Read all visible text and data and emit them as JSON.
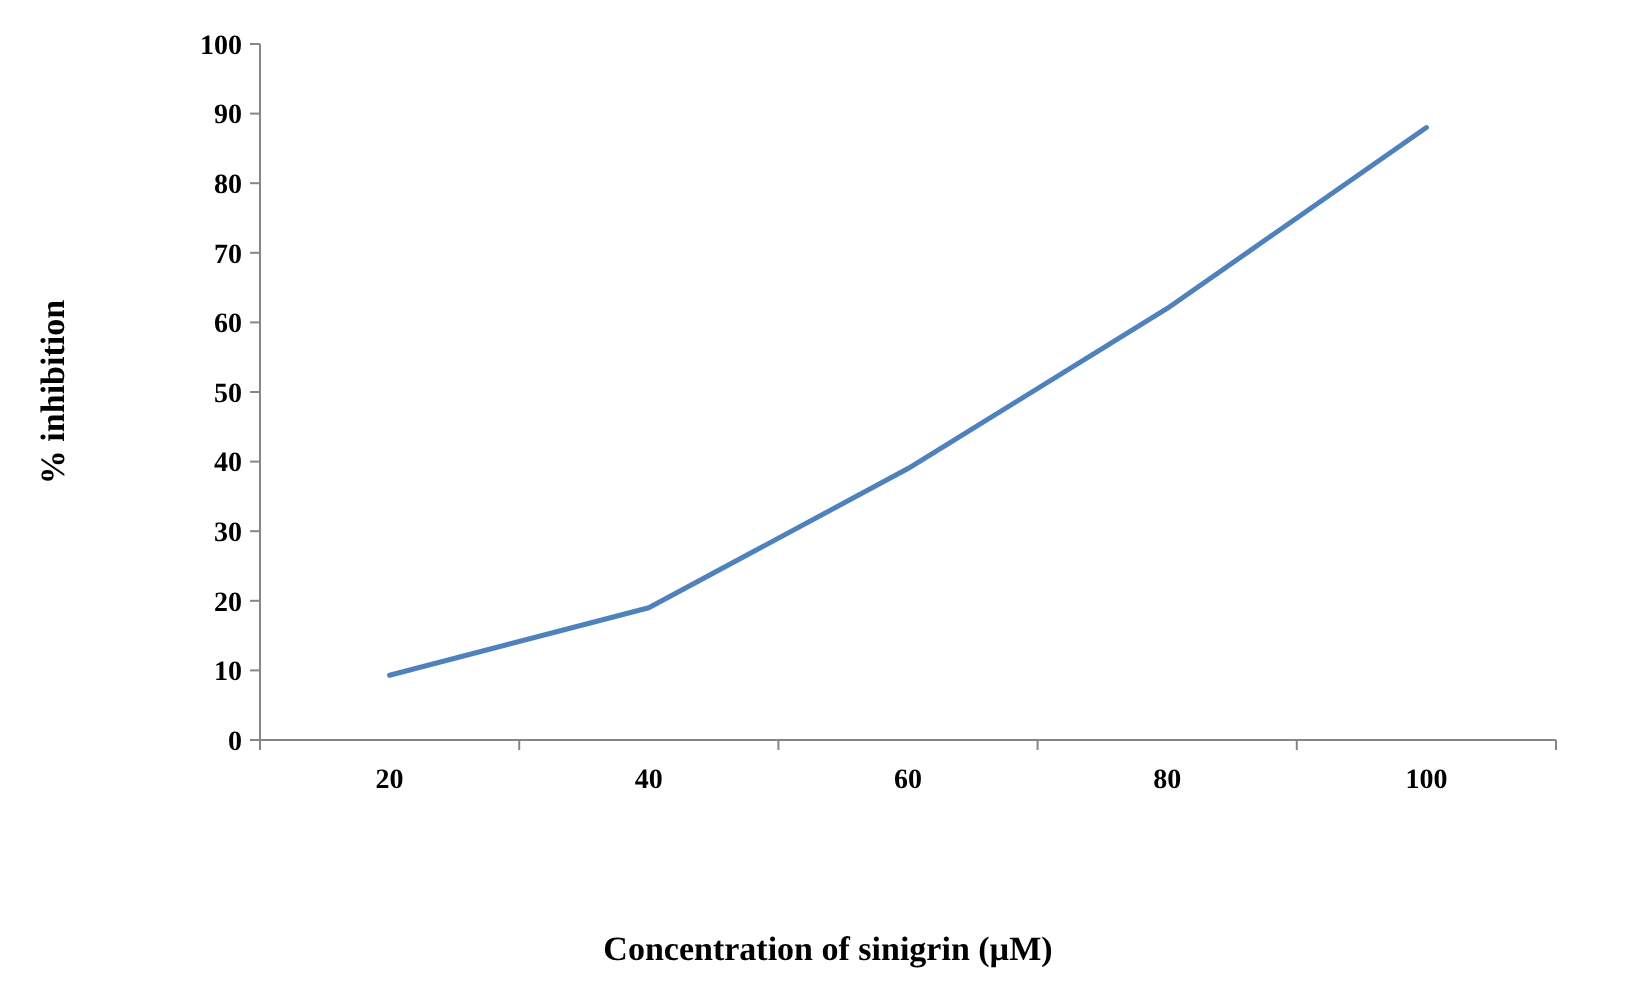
{
  "chart_data": {
    "type": "line",
    "xlabel": "Concentration of sinigrin (µM)",
    "ylabel": "% inhibition",
    "categories": [
      "20",
      "40",
      "60",
      "80",
      "100"
    ],
    "series": [
      {
        "color": "#4f81bd",
        "values": [
          9.3,
          19,
          39,
          62,
          88
        ]
      }
    ],
    "ylim": [
      0,
      100
    ],
    "yticks": [
      0,
      10,
      20,
      30,
      40,
      50,
      60,
      70,
      80,
      90,
      100
    ],
    "marker": "none",
    "line_style": "solid"
  }
}
